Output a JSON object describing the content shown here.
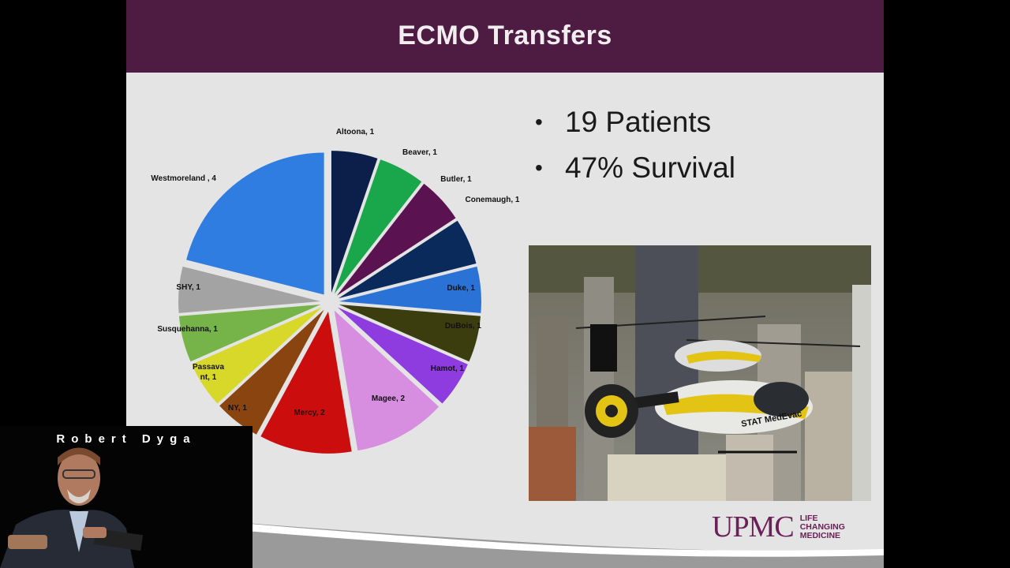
{
  "slide": {
    "title": "ECMO Transfers",
    "bullets": [
      "19 Patients",
      "47% Survival"
    ]
  },
  "chart_data": {
    "type": "pie",
    "slices": [
      {
        "label": "Altoona, 1",
        "name": "Altoona",
        "value": 1,
        "color": "#0b1f4a"
      },
      {
        "label": "Beaver, 1",
        "name": "Beaver",
        "value": 1,
        "color": "#1aa64a"
      },
      {
        "label": "Butler, 1",
        "name": "Butler",
        "value": 1,
        "color": "#5a1250"
      },
      {
        "label": "Conemaugh, 1",
        "name": "Conemaugh",
        "value": 1,
        "color": "#0a2a5c"
      },
      {
        "label": "Duke, 1",
        "name": "Duke",
        "value": 1,
        "color": "#2a72d6"
      },
      {
        "label": "DuBois, 1",
        "name": "DuBois",
        "value": 1,
        "color": "#3b3d0f"
      },
      {
        "label": "Hamot, 1",
        "name": "Hamot",
        "value": 1,
        "color": "#8e3be0"
      },
      {
        "label": "Magee, 2",
        "name": "Magee",
        "value": 2,
        "color": "#d78ee0"
      },
      {
        "label": "Mercy, 2",
        "name": "Mercy",
        "value": 2,
        "color": "#cc0d0d"
      },
      {
        "label": "NY, 1",
        "name": "NY",
        "value": 1,
        "color": "#8a4410"
      },
      {
        "label": "Passava nt, 1",
        "name": "Passavant",
        "value": 1,
        "color": "#d8d82a"
      },
      {
        "label": "Susquehanna, 1",
        "name": "Susquehanna",
        "value": 1,
        "color": "#76b348"
      },
      {
        "label": "SHY, 1",
        "name": "SHY",
        "value": 1,
        "color": "#a3a3a3"
      },
      {
        "label": "Westmoreland , 4",
        "name": "Westmoreland",
        "value": 4,
        "color": "#2f7de0"
      }
    ]
  },
  "branding": {
    "name": "UPMC",
    "tagline_lines": [
      "LIFE",
      "CHANGING",
      "MEDICINE"
    ],
    "color": "#6b2059"
  },
  "photo": {
    "aircraft_tail_text": "STAT MedEvac"
  },
  "speaker": {
    "name": "Robert Dyga"
  },
  "colors": {
    "header": "#4e1c42",
    "slide_bg": "#e4e4e4"
  }
}
